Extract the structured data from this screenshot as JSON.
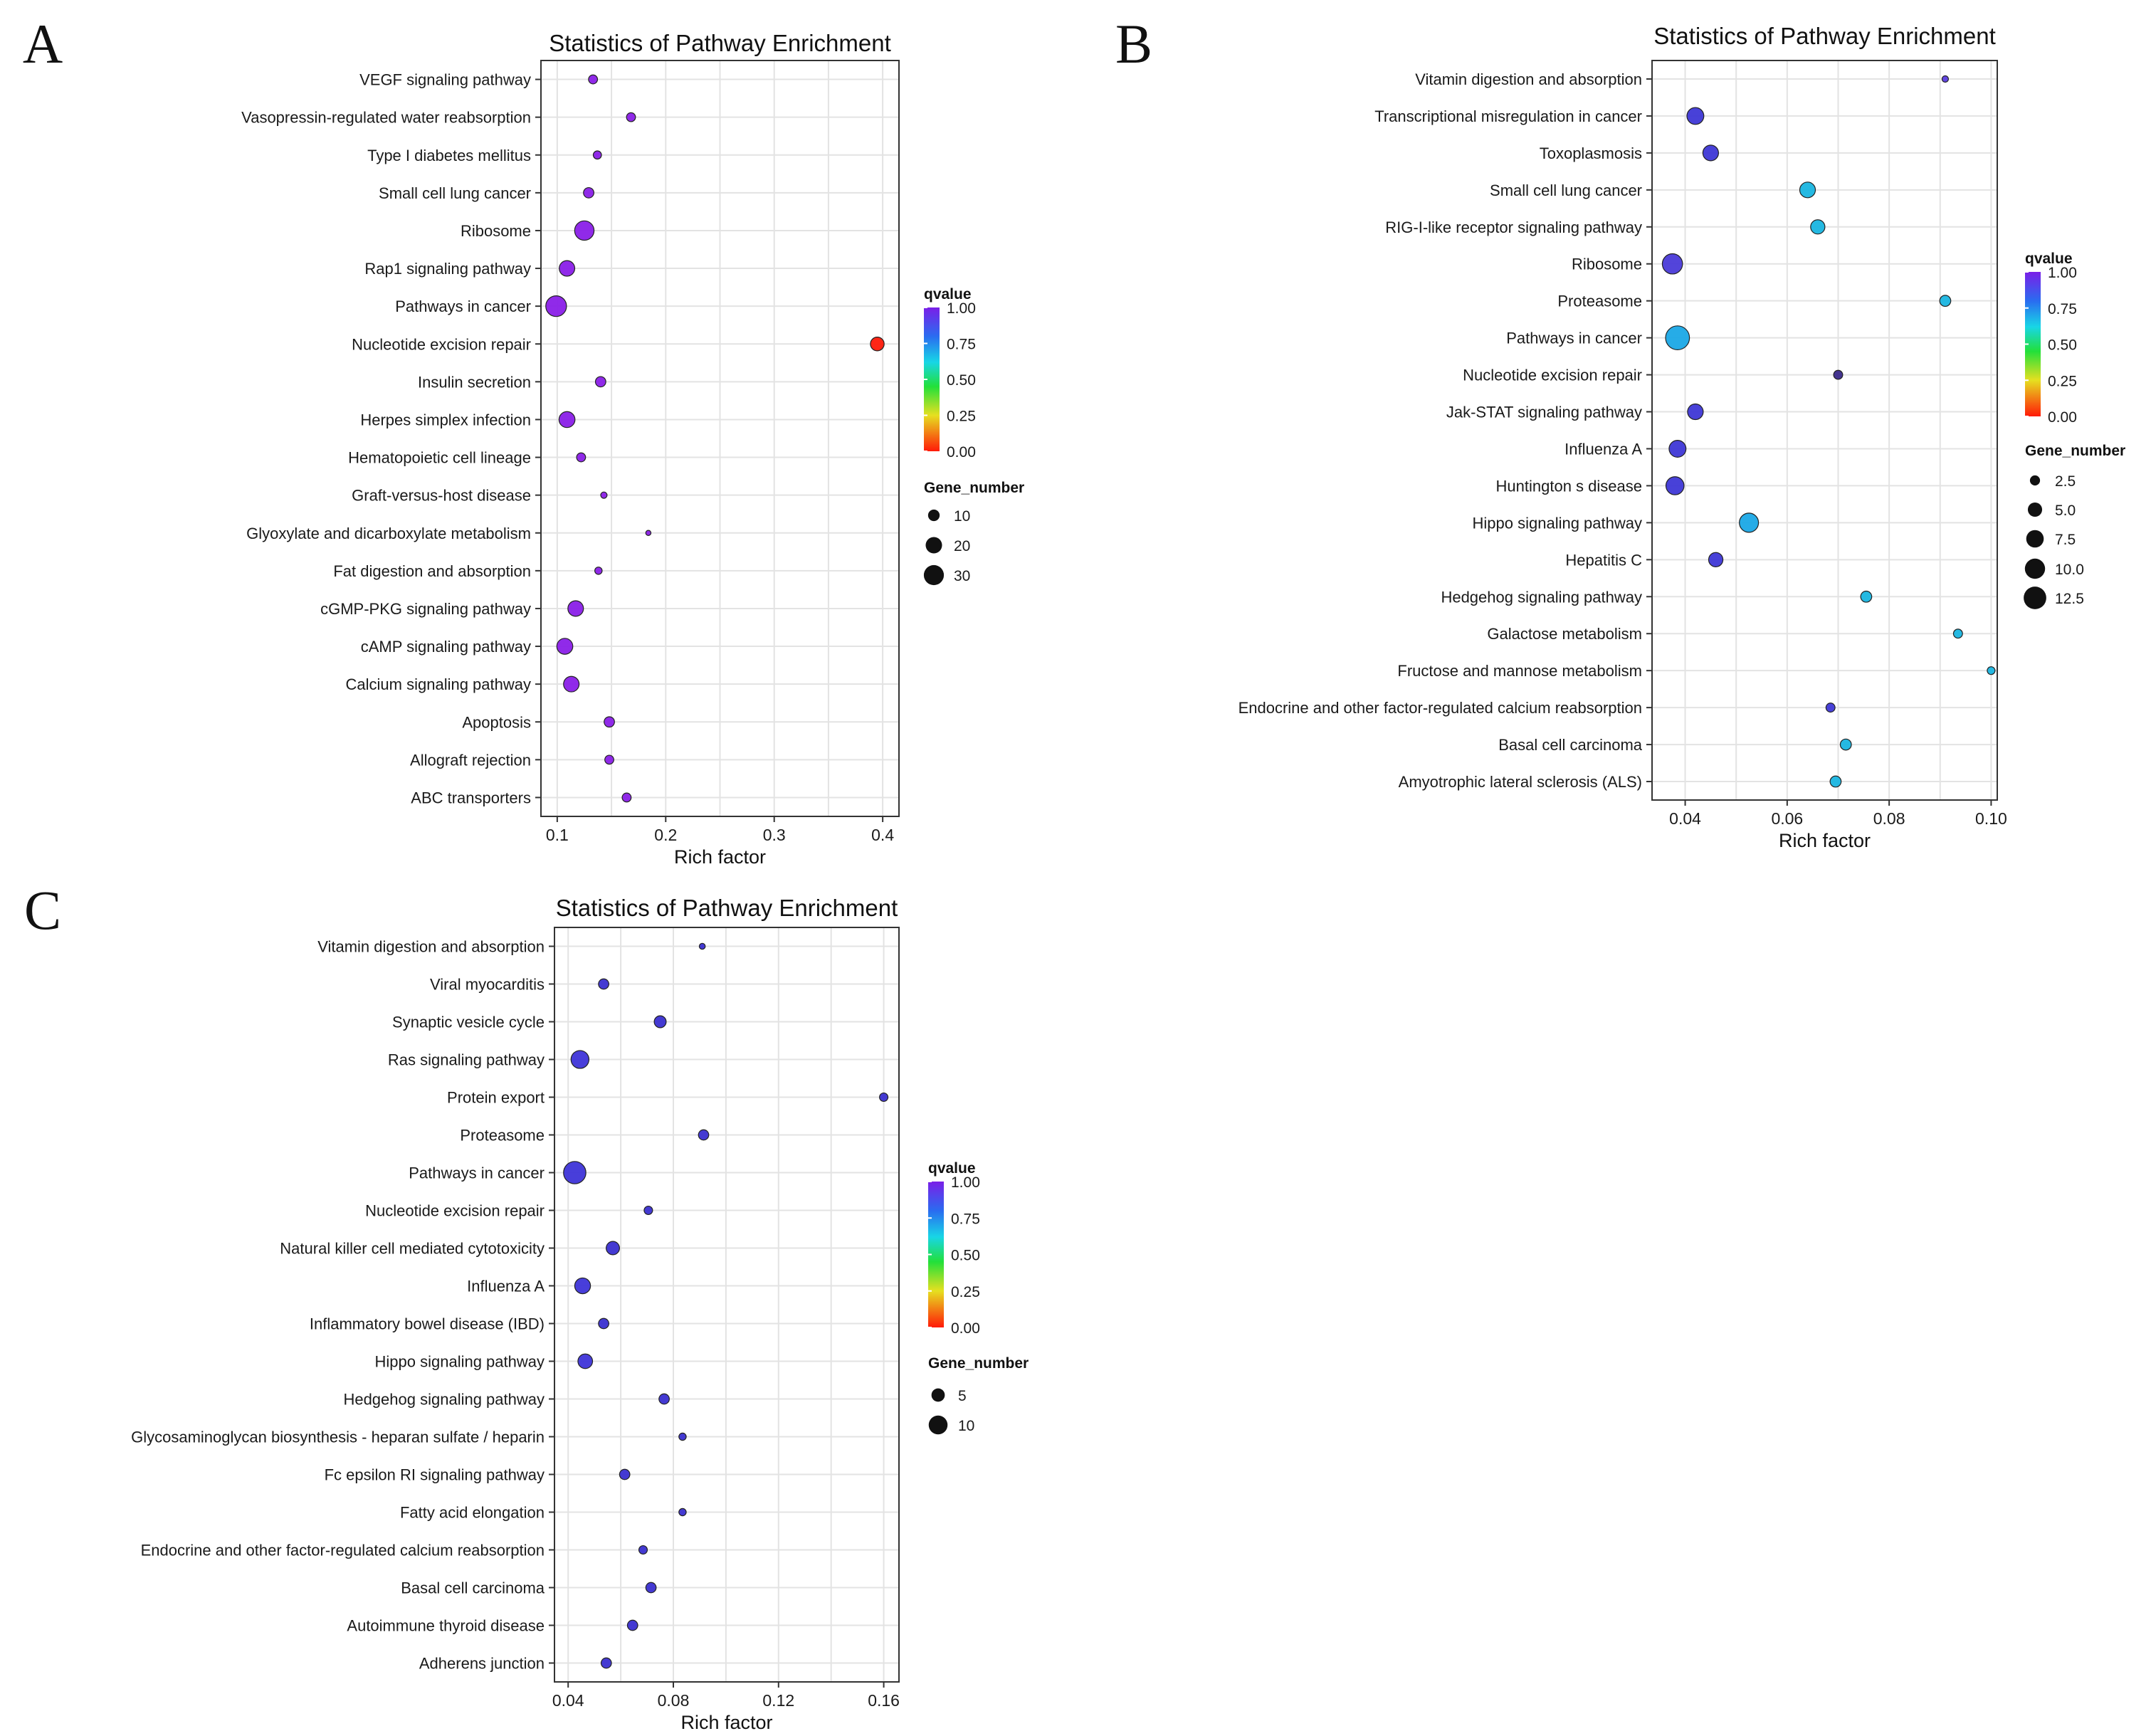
{
  "chart_data": [
    {
      "panel": "A",
      "type": "scatter",
      "title": "Statistics of Pathway Enrichment",
      "xlabel": "Rich factor",
      "ylabel": "",
      "xlim": [
        0.085,
        0.415
      ],
      "xticks": [
        0.1,
        0.2,
        0.3,
        0.4
      ],
      "xtick_labels": [
        "0.1",
        "0.2",
        "0.3",
        "0.4"
      ],
      "color_legend": {
        "title": "qvalue",
        "ticks": [
          "1.00",
          "0.75",
          "0.50",
          "0.25",
          "0.00"
        ]
      },
      "size_legend": {
        "title": "Gene_number",
        "values": [
          10,
          20,
          30
        ],
        "labels": [
          "10",
          "20",
          "30"
        ],
        "range": [
          2,
          32
        ]
      },
      "points": [
        {
          "pathway": "VEGF signaling pathway",
          "rich_factor": 0.133,
          "qvalue": 1.0,
          "gene_number": 6,
          "color": "#8a1fe8"
        },
        {
          "pathway": "Vasopressin-regulated water reabsorption",
          "rich_factor": 0.168,
          "qvalue": 1.0,
          "gene_number": 6,
          "color": "#8a1fe8"
        },
        {
          "pathway": "Type I diabetes mellitus",
          "rich_factor": 0.137,
          "qvalue": 1.0,
          "gene_number": 5,
          "color": "#8a1fe8"
        },
        {
          "pathway": "Small cell lung cancer",
          "rich_factor": 0.129,
          "qvalue": 1.0,
          "gene_number": 8,
          "color": "#8a1fe8"
        },
        {
          "pathway": "Ribosome",
          "rich_factor": 0.125,
          "qvalue": 1.0,
          "gene_number": 28,
          "color": "#8a1fe8"
        },
        {
          "pathway": "Rap1 signaling pathway",
          "rich_factor": 0.109,
          "qvalue": 1.0,
          "gene_number": 18,
          "color": "#8a1fe8"
        },
        {
          "pathway": "Pathways in cancer",
          "rich_factor": 0.099,
          "qvalue": 1.0,
          "gene_number": 32,
          "color": "#8a1fe8"
        },
        {
          "pathway": "Nucleotide excision repair",
          "rich_factor": 0.395,
          "qvalue": 0.0,
          "gene_number": 14,
          "color": "#ff1a0a"
        },
        {
          "pathway": "Insulin secretion",
          "rich_factor": 0.14,
          "qvalue": 1.0,
          "gene_number": 8,
          "color": "#8a1fe8"
        },
        {
          "pathway": "Herpes simplex infection",
          "rich_factor": 0.109,
          "qvalue": 1.0,
          "gene_number": 19,
          "color": "#8a1fe8"
        },
        {
          "pathway": "Hematopoietic cell lineage",
          "rich_factor": 0.122,
          "qvalue": 1.0,
          "gene_number": 6,
          "color": "#8a1fe8"
        },
        {
          "pathway": "Graft-versus-host disease",
          "rich_factor": 0.143,
          "qvalue": 1.0,
          "gene_number": 3,
          "color": "#8a1fe8"
        },
        {
          "pathway": "Glyoxylate and dicarboxylate metabolism",
          "rich_factor": 0.184,
          "qvalue": 1.0,
          "gene_number": 2,
          "color": "#8a1fe8"
        },
        {
          "pathway": "Fat digestion and absorption",
          "rich_factor": 0.138,
          "qvalue": 1.0,
          "gene_number": 4,
          "color": "#8a1fe8"
        },
        {
          "pathway": "cGMP-PKG signaling pathway",
          "rich_factor": 0.117,
          "qvalue": 1.0,
          "gene_number": 18,
          "color": "#8a1fe8"
        },
        {
          "pathway": "cAMP signaling pathway",
          "rich_factor": 0.107,
          "qvalue": 1.0,
          "gene_number": 19,
          "color": "#8a1fe8"
        },
        {
          "pathway": "Calcium signaling pathway",
          "rich_factor": 0.113,
          "qvalue": 1.0,
          "gene_number": 18,
          "color": "#8a1fe8"
        },
        {
          "pathway": "Apoptosis",
          "rich_factor": 0.148,
          "qvalue": 1.0,
          "gene_number": 8,
          "color": "#8a1fe8"
        },
        {
          "pathway": "Allograft rejection",
          "rich_factor": 0.148,
          "qvalue": 1.0,
          "gene_number": 6,
          "color": "#8a1fe8"
        },
        {
          "pathway": "ABC transporters",
          "rich_factor": 0.164,
          "qvalue": 1.0,
          "gene_number": 6,
          "color": "#8a1fe8"
        }
      ]
    },
    {
      "panel": "B",
      "type": "scatter",
      "title": "Statistics of Pathway Enrichment",
      "xlabel": "Rich factor",
      "ylabel": "",
      "xlim": [
        0.0335,
        0.1012
      ],
      "xticks": [
        0.04,
        0.06,
        0.08,
        0.1
      ],
      "xtick_labels": [
        "0.04",
        "0.06",
        "0.08",
        "0.10"
      ],
      "color_legend": {
        "title": "qvalue",
        "ticks": [
          "1.00",
          "0.75",
          "0.50",
          "0.25",
          "0.00"
        ]
      },
      "size_legend": {
        "title": "Gene_number",
        "values": [
          2.5,
          5.0,
          7.5,
          10.0,
          12.5
        ],
        "labels": [
          "2.5",
          "5.0",
          "7.5",
          "10.0",
          "12.5"
        ],
        "range": [
          1,
          14
        ]
      },
      "points": [
        {
          "pathway": "Vitamin digestion and absorption",
          "rich_factor": 0.091,
          "qvalue": 0.95,
          "gene_number": 1,
          "color": "#5b3de0"
        },
        {
          "pathway": "Transcriptional misregulation in cancer",
          "rich_factor": 0.042,
          "qvalue": 0.9,
          "gene_number": 7,
          "color": "#3e37d6"
        },
        {
          "pathway": "Toxoplasmosis",
          "rich_factor": 0.045,
          "qvalue": 0.9,
          "gene_number": 6,
          "color": "#3e37d6"
        },
        {
          "pathway": "Small cell lung cancer",
          "rich_factor": 0.064,
          "qvalue": 0.65,
          "gene_number": 6,
          "color": "#19b5e0"
        },
        {
          "pathway": "RIG-I-like receptor signaling pathway",
          "rich_factor": 0.066,
          "qvalue": 0.65,
          "gene_number": 5,
          "color": "#19b5e0"
        },
        {
          "pathway": "Ribosome",
          "rich_factor": 0.0375,
          "qvalue": 0.9,
          "gene_number": 10,
          "color": "#4a3ad8"
        },
        {
          "pathway": "Proteasome",
          "rich_factor": 0.091,
          "qvalue": 0.65,
          "gene_number": 3,
          "color": "#19b5e0"
        },
        {
          "pathway": "Pathways in cancer",
          "rich_factor": 0.0385,
          "qvalue": 0.65,
          "gene_number": 14,
          "color": "#1aa8e6"
        },
        {
          "pathway": "Nucleotide excision repair",
          "rich_factor": 0.07,
          "qvalue": 0.95,
          "gene_number": 2,
          "color": "#3a2a8a"
        },
        {
          "pathway": "Jak-STAT signaling pathway",
          "rich_factor": 0.042,
          "qvalue": 0.9,
          "gene_number": 6,
          "color": "#3e37d6"
        },
        {
          "pathway": "Influenza A",
          "rich_factor": 0.0385,
          "qvalue": 0.9,
          "gene_number": 7,
          "color": "#3e37d6"
        },
        {
          "pathway": "Huntington s disease",
          "rich_factor": 0.038,
          "qvalue": 0.9,
          "gene_number": 8,
          "color": "#3e37d6"
        },
        {
          "pathway": "Hippo signaling pathway",
          "rich_factor": 0.0525,
          "qvalue": 0.65,
          "gene_number": 9,
          "color": "#1aa8e6"
        },
        {
          "pathway": "Hepatitis C",
          "rich_factor": 0.046,
          "qvalue": 0.9,
          "gene_number": 5,
          "color": "#3e37d6"
        },
        {
          "pathway": "Hedgehog signaling pathway",
          "rich_factor": 0.0755,
          "qvalue": 0.65,
          "gene_number": 3,
          "color": "#19b5e0"
        },
        {
          "pathway": "Galactose metabolism",
          "rich_factor": 0.0935,
          "qvalue": 0.65,
          "gene_number": 2,
          "color": "#19b5e0"
        },
        {
          "pathway": "Fructose and mannose metabolism",
          "rich_factor": 0.1,
          "qvalue": 0.65,
          "gene_number": 1.5,
          "color": "#19b5e0"
        },
        {
          "pathway": "Endocrine and other factor-regulated calcium reabsorption",
          "rich_factor": 0.0685,
          "qvalue": 0.95,
          "gene_number": 2,
          "color": "#3e37d6"
        },
        {
          "pathway": "Basal cell carcinoma",
          "rich_factor": 0.0715,
          "qvalue": 0.65,
          "gene_number": 3,
          "color": "#19b5e0"
        },
        {
          "pathway": "Amyotrophic lateral sclerosis (ALS)",
          "rich_factor": 0.0695,
          "qvalue": 0.65,
          "gene_number": 3,
          "color": "#19b5e0"
        }
      ]
    },
    {
      "panel": "C",
      "type": "scatter",
      "title": "Statistics of Pathway Enrichment",
      "xlabel": "Rich factor",
      "ylabel": "",
      "xlim": [
        0.0348,
        0.1658
      ],
      "xticks": [
        0.04,
        0.08,
        0.12,
        0.16
      ],
      "xtick_labels": [
        "0.04",
        "0.08",
        "0.12",
        "0.16"
      ],
      "color_legend": {
        "title": "qvalue",
        "ticks": [
          "1.00",
          "0.75",
          "0.50",
          "0.25",
          "0.00"
        ]
      },
      "size_legend": {
        "title": "Gene_number",
        "values": [
          5,
          10
        ],
        "labels": [
          "5",
          "10"
        ],
        "range": [
          1,
          14
        ]
      },
      "points": [
        {
          "pathway": "Vitamin digestion and absorption",
          "rich_factor": 0.091,
          "qvalue": 0.98,
          "gene_number": 1,
          "color": "#3a2fd0"
        },
        {
          "pathway": "Viral myocarditis",
          "rich_factor": 0.0535,
          "qvalue": 0.98,
          "gene_number": 3,
          "color": "#3a2fd0"
        },
        {
          "pathway": "Synaptic vesicle cycle",
          "rich_factor": 0.075,
          "qvalue": 0.98,
          "gene_number": 4,
          "color": "#3a2fd0"
        },
        {
          "pathway": "Ras signaling pathway",
          "rich_factor": 0.0445,
          "qvalue": 0.98,
          "gene_number": 9,
          "color": "#3e34d8"
        },
        {
          "pathway": "Protein export",
          "rich_factor": 0.16,
          "qvalue": 0.98,
          "gene_number": 2,
          "color": "#3a2fd0"
        },
        {
          "pathway": "Proteasome",
          "rich_factor": 0.0915,
          "qvalue": 0.98,
          "gene_number": 3,
          "color": "#3a2fd0"
        },
        {
          "pathway": "Pathways in cancer",
          "rich_factor": 0.0425,
          "qvalue": 0.98,
          "gene_number": 14,
          "color": "#3e34d8"
        },
        {
          "pathway": "Nucleotide excision repair",
          "rich_factor": 0.0705,
          "qvalue": 0.98,
          "gene_number": 2,
          "color": "#3a2fd0"
        },
        {
          "pathway": "Natural killer cell mediated cytotoxicity",
          "rich_factor": 0.057,
          "qvalue": 0.98,
          "gene_number": 5,
          "color": "#3a2fd0"
        },
        {
          "pathway": "Influenza A",
          "rich_factor": 0.0455,
          "qvalue": 0.98,
          "gene_number": 7,
          "color": "#3e34d8"
        },
        {
          "pathway": "Inflammatory bowel disease (IBD)",
          "rich_factor": 0.0535,
          "qvalue": 0.98,
          "gene_number": 3,
          "color": "#3a2fd0"
        },
        {
          "pathway": "Hippo signaling pathway",
          "rich_factor": 0.0465,
          "qvalue": 0.98,
          "gene_number": 6,
          "color": "#3e34d8"
        },
        {
          "pathway": "Hedgehog signaling pathway",
          "rich_factor": 0.0765,
          "qvalue": 0.98,
          "gene_number": 3,
          "color": "#3a2fd0"
        },
        {
          "pathway": "Glycosaminoglycan biosynthesis - heparan sulfate / heparin",
          "rich_factor": 0.0835,
          "qvalue": 0.98,
          "gene_number": 1.5,
          "color": "#3a2fd0"
        },
        {
          "pathway": "Fc epsilon RI signaling pathway",
          "rich_factor": 0.0615,
          "qvalue": 0.98,
          "gene_number": 3,
          "color": "#3a2fd0"
        },
        {
          "pathway": "Fatty acid elongation",
          "rich_factor": 0.0835,
          "qvalue": 0.98,
          "gene_number": 1.5,
          "color": "#3a2fd0"
        },
        {
          "pathway": "Endocrine and other factor-regulated calcium reabsorption",
          "rich_factor": 0.0685,
          "qvalue": 0.98,
          "gene_number": 2,
          "color": "#3a2fd0"
        },
        {
          "pathway": "Basal cell carcinoma",
          "rich_factor": 0.0715,
          "qvalue": 0.98,
          "gene_number": 3,
          "color": "#3a2fd0"
        },
        {
          "pathway": "Autoimmune thyroid disease",
          "rich_factor": 0.0645,
          "qvalue": 0.98,
          "gene_number": 3,
          "color": "#3a2fd0"
        },
        {
          "pathway": "Adherens junction",
          "rich_factor": 0.0545,
          "qvalue": 0.98,
          "gene_number": 3,
          "color": "#3a2fd0"
        }
      ]
    }
  ]
}
